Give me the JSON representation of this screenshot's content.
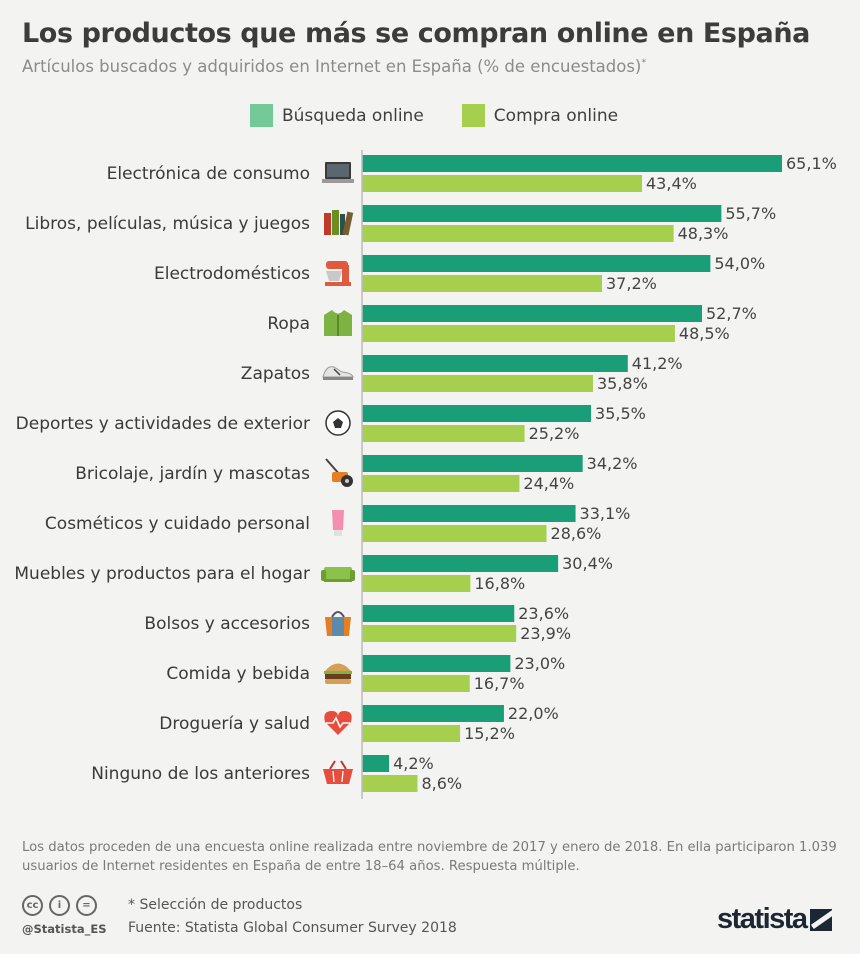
{
  "title": "Los productos que más se compran online en España",
  "subtitle": "Artículos buscados y adquiridos en Internet en España (% de encuestados)",
  "subtitle_mark": "*",
  "colors": {
    "busqueda": "#1a9e77",
    "compra": "#a6cf4e",
    "axis": "#bdbdbd"
  },
  "chart_data": {
    "type": "bar",
    "orientation": "horizontal",
    "categories": [
      "Electrónica de consumo",
      "Libros, películas, música y juegos",
      "Electrodomésticos",
      "Ropa",
      "Zapatos",
      "Deportes y actividades de exterior",
      "Bricolaje, jardín y mascotas",
      "Cosméticos y cuidado personal",
      "Muebles y productos para el hogar",
      "Bolsos y accesorios",
      "Comida y bebida",
      "Droguería y salud",
      "Ninguno de los anteriores"
    ],
    "icons": [
      "laptop-icon",
      "books-icon",
      "mixer-icon",
      "jacket-icon",
      "sneaker-icon",
      "soccer-ball-icon",
      "lawnmower-icon",
      "cosmetic-tube-icon",
      "sofa-icon",
      "handbag-icon",
      "burger-icon",
      "heart-pulse-icon",
      "basket-icon"
    ],
    "series": [
      {
        "name": "Búsqueda online",
        "values": [
          65.1,
          55.7,
          54.0,
          52.7,
          41.2,
          35.5,
          34.2,
          33.1,
          30.4,
          23.6,
          23.0,
          22.0,
          4.2
        ]
      },
      {
        "name": "Compra online",
        "values": [
          43.4,
          48.3,
          37.2,
          48.5,
          35.8,
          25.2,
          24.4,
          28.6,
          16.8,
          23.9,
          16.7,
          15.2,
          8.6
        ]
      }
    ],
    "value_labels": [
      [
        "65,1%",
        "55,7%",
        "54,0%",
        "52,7%",
        "41,2%",
        "35,5%",
        "34,2%",
        "33,1%",
        "30,4%",
        "23,6%",
        "23,0%",
        "22,0%",
        "4,2%"
      ],
      [
        "43,4%",
        "48,3%",
        "37,2%",
        "48,5%",
        "35,8%",
        "25,2%",
        "24,4%",
        "28,6%",
        "16,8%",
        "23,9%",
        "16,7%",
        "15,2%",
        "8,6%"
      ]
    ],
    "xlim": [
      0,
      65.1
    ],
    "legend_position": "top",
    "grid": false
  },
  "footnote": "Los datos proceden de una encuesta online realizada entre noviembre de 2017 y enero de 2018. En ella participaron 1.039 usuarios de Internet residentes en España de entre 18–64 años. Respuesta múltiple.",
  "selection_note": "* Selección de productos",
  "source": "Fuente: Statista Global Consumer Survey 2018",
  "handle": "@Statista_ES",
  "brand": "statista",
  "cc_icons": [
    "cc",
    "i",
    "="
  ]
}
